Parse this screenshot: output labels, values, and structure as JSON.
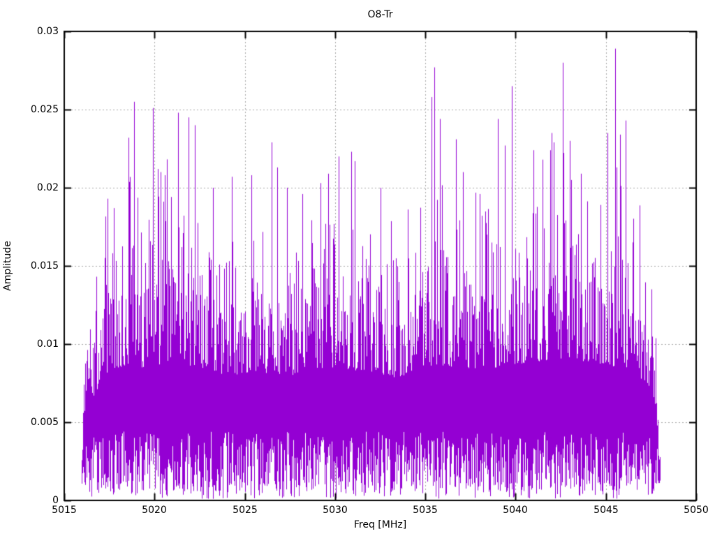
{
  "chart_data": {
    "type": "line",
    "style": "dense-impulse-spectrum",
    "title": "O8-Tr",
    "xlabel": "Freq [MHz]",
    "ylabel": "Amplitude",
    "xlim": [
      5015,
      5050
    ],
    "ylim": [
      0,
      0.03
    ],
    "x_ticks": [
      5015,
      5020,
      5025,
      5030,
      5035,
      5040,
      5045,
      5050
    ],
    "x_tick_labels": [
      "5015",
      "5020",
      "5025",
      "5030",
      "5035",
      "5040",
      "5045",
      "5050"
    ],
    "y_ticks": [
      0,
      0.005,
      0.01,
      0.015,
      0.02,
      0.025,
      0.03
    ],
    "y_tick_labels": [
      "0",
      "0.005",
      "0.01",
      "0.015",
      "0.02",
      "0.025",
      "0.03"
    ],
    "grid": true,
    "legend": "none",
    "series_color": "#9400D3",
    "grid_color": "#a6a6a6",
    "border_color": "#000000",
    "text_color": "#000000",
    "data_span": [
      5015.93,
      5048.0
    ],
    "noise_band_description": "dense noise floor: lows 0.0005-0.0045, solid mass top 0.008-0.013, frequent ascenders to 0.015-0.021",
    "envelope": [
      [
        5015.9,
        0
      ],
      [
        5016.05,
        0.5
      ],
      [
        5016.4,
        0.72
      ],
      [
        5017.0,
        0.88
      ],
      [
        5017.8,
        1.0
      ],
      [
        5019.5,
        1.0
      ],
      [
        5021.0,
        1.04
      ],
      [
        5022.5,
        1.0
      ],
      [
        5024.0,
        0.94
      ],
      [
        5026.0,
        0.96
      ],
      [
        5028.0,
        0.94
      ],
      [
        5030.0,
        1.0
      ],
      [
        5032.0,
        0.96
      ],
      [
        5033.5,
        0.92
      ],
      [
        5035.0,
        1.02
      ],
      [
        5037.0,
        0.98
      ],
      [
        5039.0,
        1.0
      ],
      [
        5041.0,
        1.04
      ],
      [
        5043.0,
        1.06
      ],
      [
        5045.0,
        1.02
      ],
      [
        5046.5,
        0.98
      ],
      [
        5047.4,
        0.85
      ],
      [
        5047.85,
        0.55
      ],
      [
        5048.0,
        0
      ]
    ],
    "peaks": [
      [
        5017.4,
        0.0193
      ],
      [
        5017.75,
        0.0187
      ],
      [
        5018.55,
        0.0232
      ],
      [
        5018.85,
        0.0255
      ],
      [
        5019.9,
        0.0251
      ],
      [
        5020.2,
        0.0212
      ],
      [
        5020.35,
        0.021
      ],
      [
        5020.55,
        0.0208
      ],
      [
        5021.3,
        0.0248
      ],
      [
        5021.9,
        0.0245
      ],
      [
        5022.25,
        0.024
      ],
      [
        5023.25,
        0.02
      ],
      [
        5024.3,
        0.0207
      ],
      [
        5025.35,
        0.0208
      ],
      [
        5026.5,
        0.0229
      ],
      [
        5026.8,
        0.0213
      ],
      [
        5028.2,
        0.0196
      ],
      [
        5029.2,
        0.0203
      ],
      [
        5029.6,
        0.0209
      ],
      [
        5030.2,
        0.022
      ],
      [
        5030.9,
        0.0223
      ],
      [
        5031.1,
        0.0217
      ],
      [
        5032.5,
        0.02
      ],
      [
        5035.35,
        0.0258
      ],
      [
        5035.5,
        0.0277
      ],
      [
        5035.8,
        0.0244
      ],
      [
        5036.7,
        0.0231
      ],
      [
        5037.1,
        0.021
      ],
      [
        5038.0,
        0.0196
      ],
      [
        5039.0,
        0.0244
      ],
      [
        5039.4,
        0.0227
      ],
      [
        5039.8,
        0.0265
      ],
      [
        5041.0,
        0.0224
      ],
      [
        5041.5,
        0.0218
      ],
      [
        5041.9,
        0.0224
      ],
      [
        5042.0,
        0.0235
      ],
      [
        5042.1,
        0.0229
      ],
      [
        5042.6,
        0.028
      ],
      [
        5043.0,
        0.023
      ],
      [
        5043.6,
        0.0209
      ],
      [
        5045.1,
        0.0235
      ],
      [
        5045.5,
        0.0289
      ],
      [
        5045.6,
        0.0213
      ],
      [
        5045.8,
        0.0234
      ],
      [
        5046.1,
        0.0243
      ]
    ],
    "generation": {
      "seed": 1337,
      "low_base": 0.0006,
      "low_spread": 0.0038,
      "p_deep_low": 0.22,
      "deep_low_base": 0.0001,
      "deep_low_spread": 0.0012,
      "mass_base": 0.0085,
      "mass_spread": 0.005,
      "p_ascender": 0.32,
      "ascender_base": 0.002,
      "ascender_spread": 0.005,
      "p_tall": 0.05,
      "tall_base": 0.016,
      "tall_spread": 0.0052,
      "peak_stem_base": 0.004
    }
  }
}
